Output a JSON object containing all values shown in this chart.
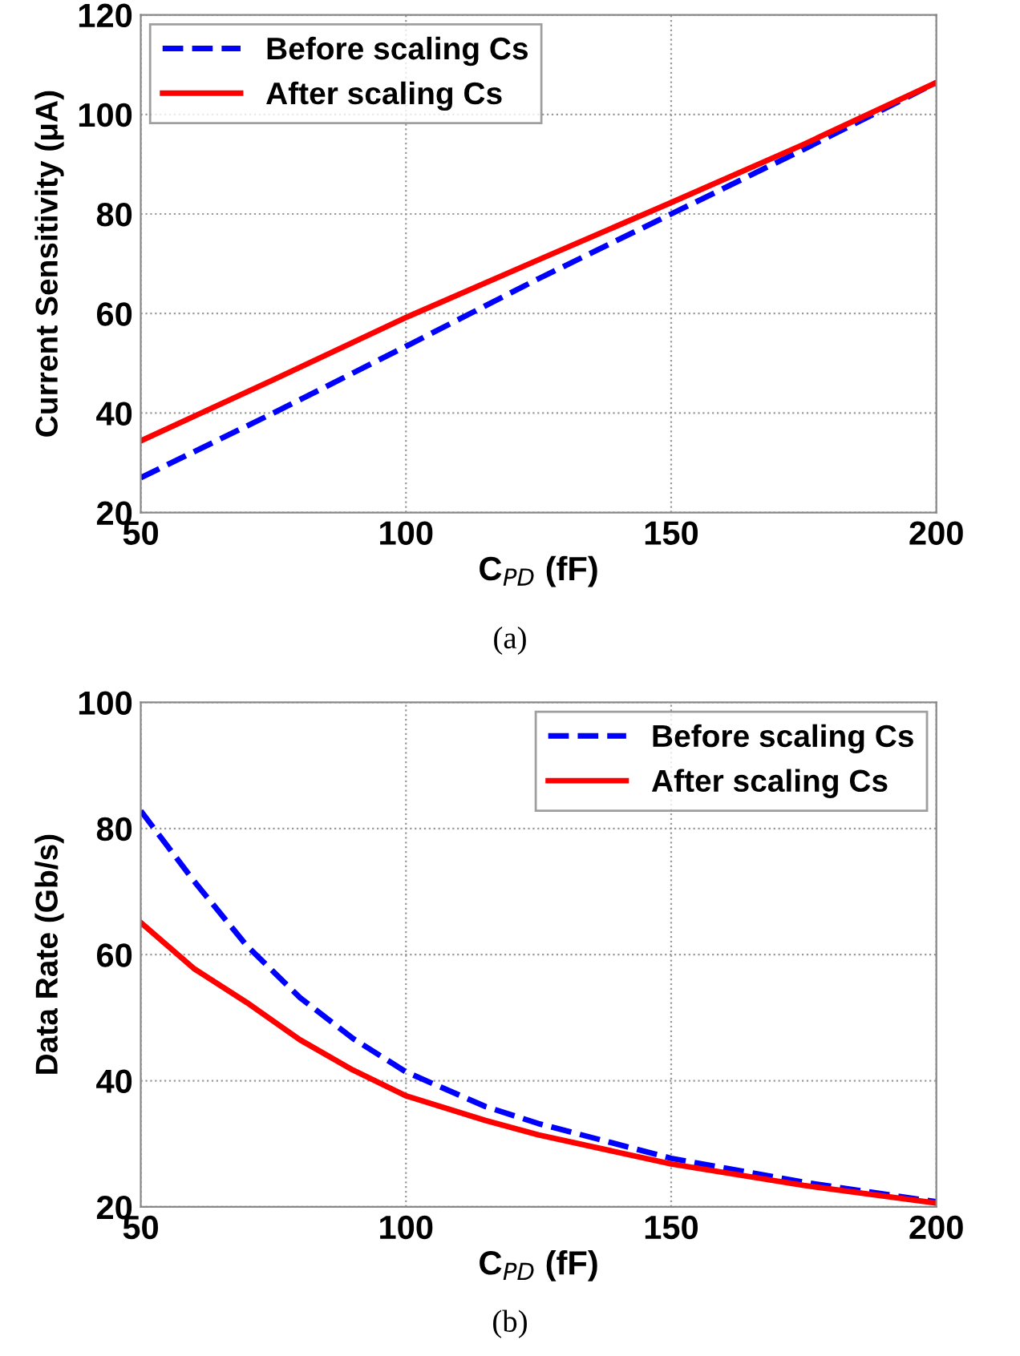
{
  "chart_data": [
    {
      "type": "line",
      "xlabel": "C$_{PD}$ (fF)",
      "ylabel": "Current Sensitivity (μA)",
      "annotations": [
        "(a)"
      ],
      "xlim": [
        50,
        200
      ],
      "ylim": [
        20,
        120
      ],
      "xticks": [
        50,
        100,
        150,
        200
      ],
      "yticks": [
        20,
        40,
        60,
        80,
        100,
        120
      ],
      "grid": true,
      "legend": "top left",
      "series": [
        {
          "name": "Before scaling Cs",
          "color": "#0000ff",
          "line_style": "dashed",
          "x": [
            50,
            75,
            100,
            125,
            150,
            175,
            200
          ],
          "values": [
            27,
            40,
            53.4,
            67,
            80,
            93,
            106.4
          ]
        },
        {
          "name": "After scaling Cs",
          "color": "#ff0000",
          "line_style": "solid",
          "x": [
            50,
            75,
            100,
            125,
            150,
            175,
            200
          ],
          "values": [
            34.4,
            46.7,
            59.2,
            70.8,
            82.3,
            94,
            106.4
          ]
        }
      ]
    },
    {
      "type": "line",
      "xlabel": "C$_{PD}$ (fF)",
      "ylabel": "Data Rate (Gb/s)",
      "annotations": [
        "(b)"
      ],
      "xlim": [
        50,
        200
      ],
      "ylim": [
        20,
        100
      ],
      "xticks": [
        50,
        100,
        150,
        200
      ],
      "yticks": [
        20,
        40,
        60,
        80,
        100
      ],
      "grid": true,
      "legend": "top right",
      "series": [
        {
          "name": "Before scaling Cs",
          "color": "#0000ff",
          "line_style": "dashed",
          "x": [
            50,
            60,
            70,
            80,
            90,
            100,
            115,
            125,
            150,
            175,
            200
          ],
          "values": [
            82.8,
            71.7,
            61.4,
            53.2,
            46.7,
            41.4,
            35.9,
            33.2,
            27.7,
            23.9,
            20.8
          ]
        },
        {
          "name": "After scaling Cs",
          "color": "#ff0000",
          "line_style": "solid",
          "x": [
            50,
            60,
            70,
            80,
            90,
            100,
            115,
            125,
            150,
            175,
            200
          ],
          "values": [
            65.1,
            57.8,
            52.4,
            46.5,
            41.7,
            37.6,
            33.7,
            31.4,
            26.8,
            23.4,
            20.6
          ]
        }
      ]
    }
  ]
}
